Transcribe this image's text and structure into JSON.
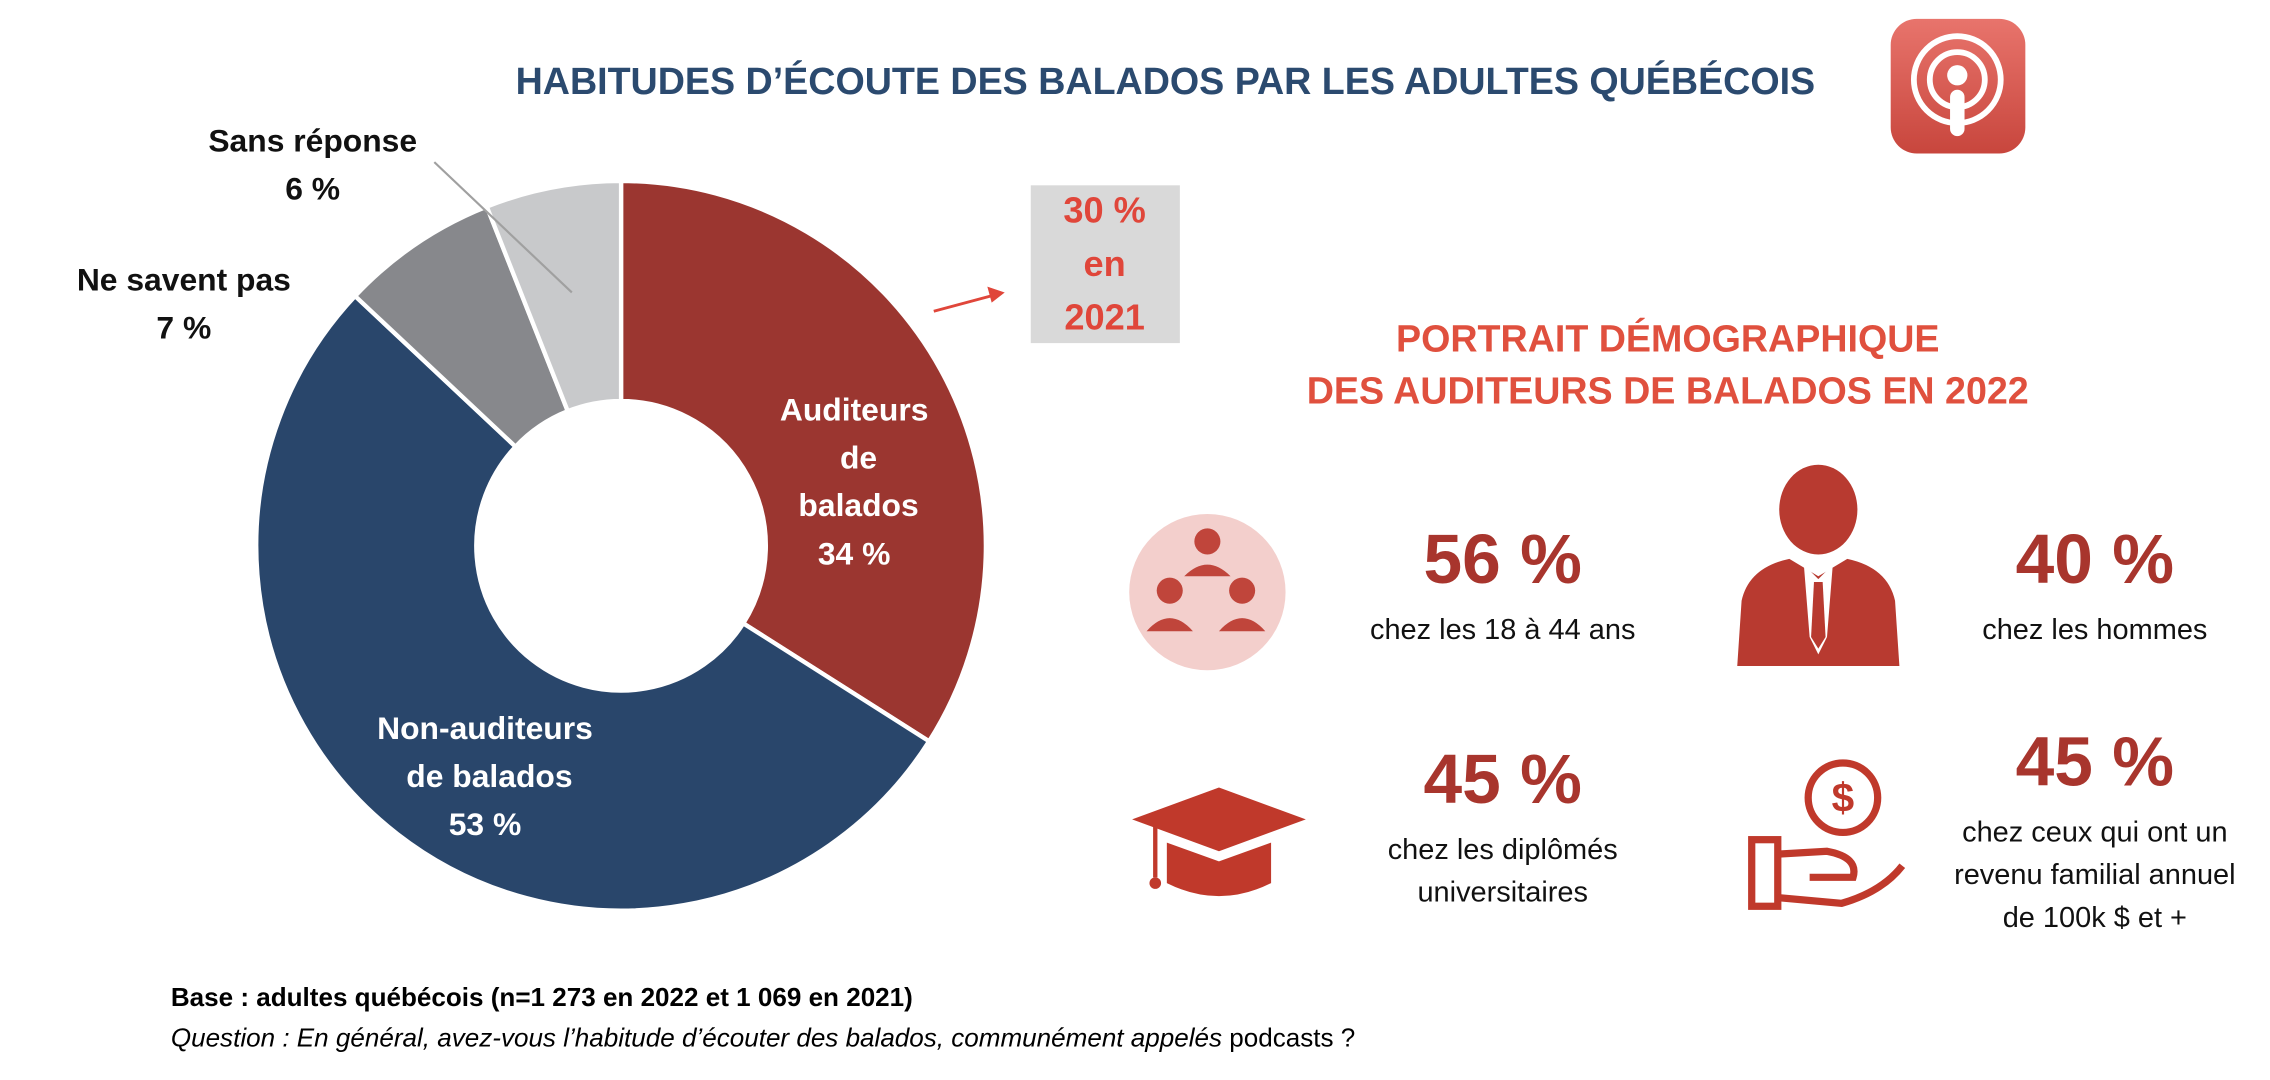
{
  "chart_data": {
    "type": "pie",
    "title": "HABITUDES D’ÉCOUTE DES BALADOS PAR LES ADULTES QUÉBÉCOIS",
    "categories": [
      "Auditeurs de balados",
      "Non-auditeurs de balados",
      "Ne savent pas",
      "Sans réponse"
    ],
    "values": [
      34,
      53,
      7,
      6
    ],
    "value_labels": [
      "34 %",
      "53 %",
      "7 %",
      "6 %"
    ],
    "colors": [
      "#9b3630",
      "#29466b",
      "#87888c",
      "#c8c9cb"
    ],
    "annotation": [
      "30 %",
      "en",
      "2021"
    ]
  },
  "portrait": {
    "title": [
      "PORTRAIT DÉMOGRAPHIQUE",
      "DES AUDITEURS DE BALADOS EN 2022"
    ],
    "stats": [
      {
        "value": "56 %",
        "label": [
          "chez les 18 à 44 ans"
        ]
      },
      {
        "value": "40 %",
        "label": [
          "chez les hommes"
        ]
      },
      {
        "value": "45 %",
        "label": [
          "chez les diplômés",
          "universitaires"
        ]
      },
      {
        "value": "45 %",
        "label": [
          "chez ceux qui ont un",
          "revenu familial annuel",
          "de 100k $ et +"
        ]
      }
    ]
  },
  "footer": {
    "base": "Base : adultes québécois (n=1 273 en 2022 et 1 069 en 2021)",
    "question": "Question : En général, avez-vous l’habitude d’écouter des balados, communément appelés",
    "question_term": "podcasts ?"
  }
}
